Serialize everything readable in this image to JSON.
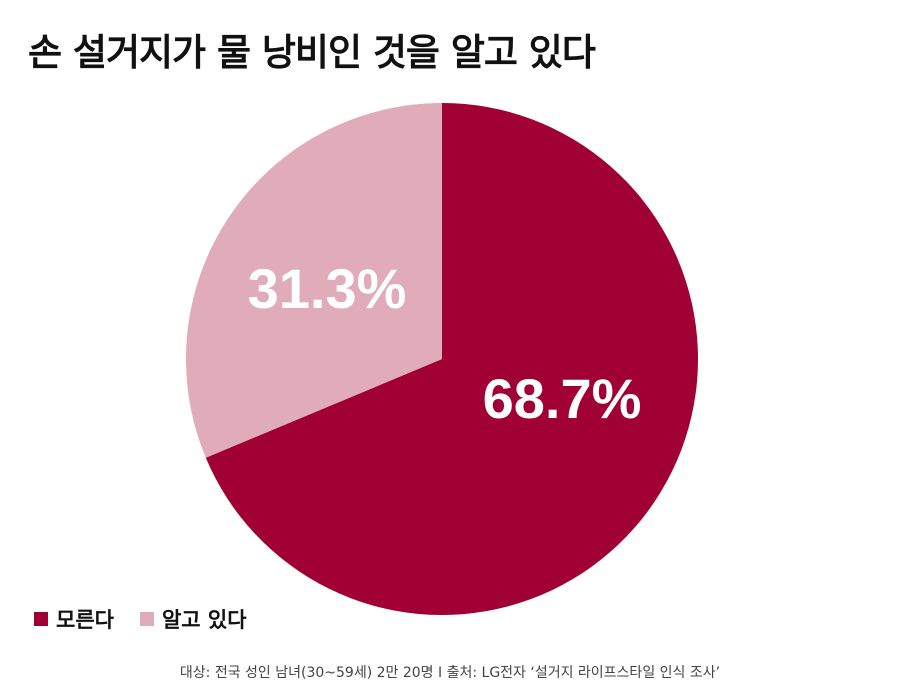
{
  "chart_data": {
    "type": "pie",
    "title": "손 설거지가 물 낭비인 것을 알고 있다",
    "slices": [
      {
        "name": "모른다",
        "value": 68.7,
        "label": "68.7%",
        "color": "#a00034"
      },
      {
        "name": "알고 있다",
        "value": 31.3,
        "label": "31.3%",
        "color": "#e0acba"
      }
    ],
    "legend_position": "bottom-left",
    "footer": "대상: 전국 성인 남녀(30~59세) 2만 20명 I 출처: LG전자 ‘설거지 라이프스타일 인식 조사’"
  }
}
